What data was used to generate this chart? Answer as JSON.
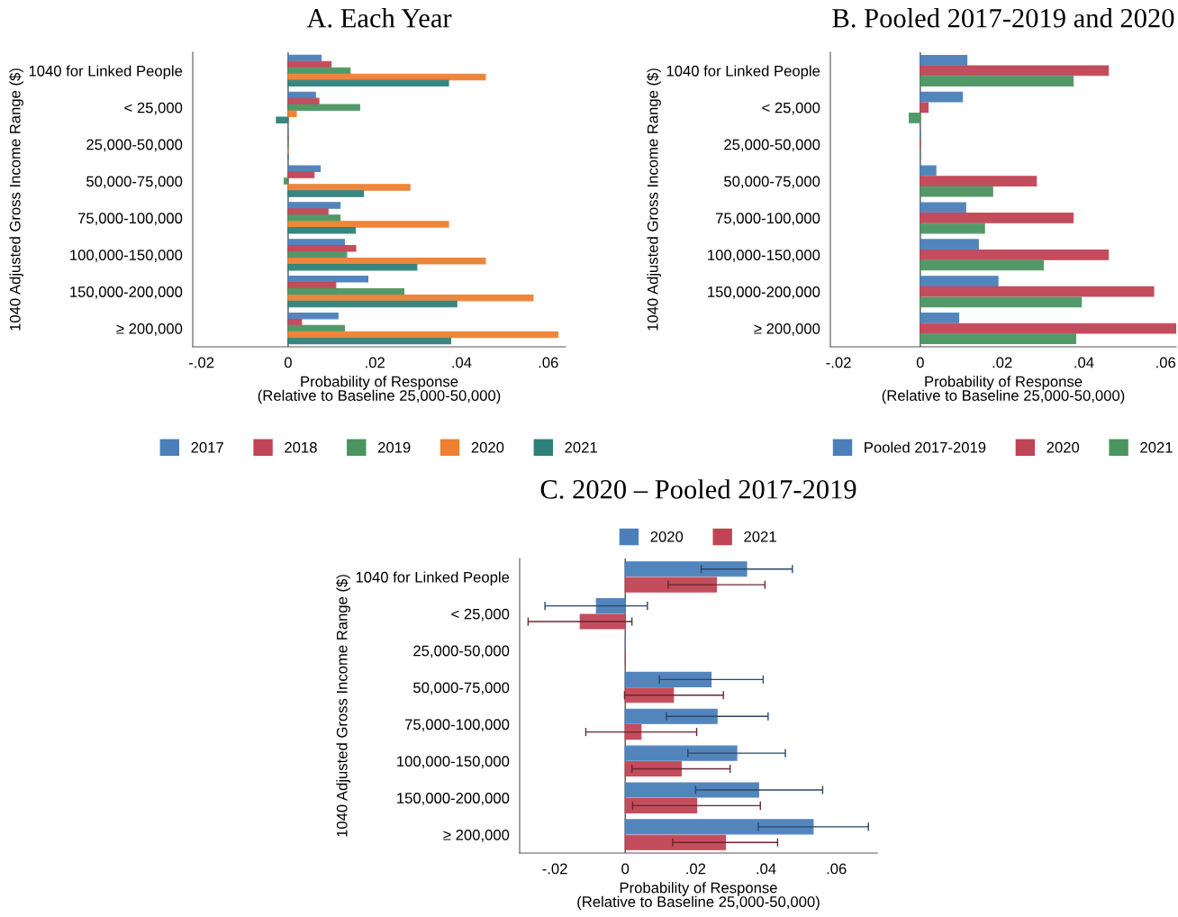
{
  "chart_data": [
    {
      "type": "bar",
      "orientation": "horizontal",
      "title": "A. Each Year",
      "xlabel": "Probability of Response\n(Relative to Baseline 25,000-50,000)",
      "ylabel": "1040 Adjusted Gross Income Range ($)",
      "categories": [
        "1040 for Linked People",
        "< 25,000",
        "25,000-50,000",
        "50,000-75,000",
        "75,000-100,000",
        "100,000-150,000",
        "150,000-200,000",
        "≥ 200,000"
      ],
      "series": [
        {
          "name": "2017",
          "color": "#4a7fba",
          "values": [
            0.0076,
            0.0063,
            0,
            0.0074,
            0.012,
            0.013,
            0.0184,
            0.0115
          ]
        },
        {
          "name": "2018",
          "color": "#c04455",
          "values": [
            0.0099,
            0.0071,
            0,
            0.006,
            0.0092,
            0.0156,
            0.011,
            0.0031
          ]
        },
        {
          "name": "2019",
          "color": "#4a9460",
          "values": [
            0.0143,
            0.0165,
            0,
            -0.0009,
            0.012,
            0.0135,
            0.0267,
            0.013
          ]
        },
        {
          "name": "2020",
          "color": "#ed8030",
          "values": [
            0.0455,
            0.0019,
            0,
            0.0281,
            0.037,
            0.0455,
            0.0565,
            0.0622
          ]
        },
        {
          "name": "2021",
          "color": "#2e8079",
          "values": [
            0.037,
            -0.0027,
            0,
            0.0174,
            0.0155,
            0.0297,
            0.0389,
            0.0375
          ]
        }
      ],
      "xlim": [
        -0.022,
        0.064
      ],
      "xticks": [
        {
          "value": -0.02,
          "label": "-.02"
        },
        0,
        {
          "value": 0.02,
          "label": ".02"
        },
        {
          "value": 0.04,
          "label": ".04"
        },
        {
          "value": 0.06,
          "label": ".06"
        }
      ],
      "ref_lines": [
        {
          "axis": "x",
          "value": 0,
          "color": "#555555"
        }
      ],
      "legend": "bottom",
      "grid": false
    },
    {
      "type": "bar",
      "orientation": "horizontal",
      "title": "B. Pooled 2017-2019 and 2020",
      "xlabel": "Probability of Response\n(Relative to Baseline 25,000-50,000)",
      "ylabel": "1040 Adjusted Gross Income Range ($)",
      "categories": [
        "1040 for Linked People",
        "< 25,000",
        "25,000-50,000",
        "50,000-75,000",
        "75,000-100,000",
        "100,000-150,000",
        "150,000-200,000",
        "≥ 200,000"
      ],
      "series": [
        {
          "name": "Pooled 2017-2019",
          "color": "#4a7fba",
          "values": [
            0.0114,
            0.0103,
            0,
            0.0038,
            0.0111,
            0.0142,
            0.019,
            0.0094
          ]
        },
        {
          "name": "2020",
          "color": "#c04455",
          "values": [
            0.046,
            0.0019,
            0,
            0.0284,
            0.0374,
            0.046,
            0.0571,
            0.0626
          ]
        },
        {
          "name": "2021",
          "color": "#4a9460",
          "values": [
            0.0374,
            -0.0027,
            0,
            0.0177,
            0.0157,
            0.0301,
            0.0394,
            0.038
          ]
        }
      ],
      "xlim": [
        -0.022,
        0.0626
      ],
      "xticks": [
        {
          "value": -0.02,
          "label": "-.02"
        },
        0,
        {
          "value": 0.02,
          "label": ".02"
        },
        {
          "value": 0.04,
          "label": ".04"
        },
        {
          "value": 0.06,
          "label": ".06"
        }
      ],
      "ref_lines": [
        {
          "axis": "x",
          "value": 0,
          "color": "#555555"
        }
      ],
      "legend": "bottom",
      "grid": false
    },
    {
      "type": "bar",
      "orientation": "horizontal",
      "title": "C. 2020 – Pooled 2017-2019",
      "xlabel": "Probability of Response\n(Relative to Baseline 25,000-50,000)",
      "ylabel": "1040 Adjusted Gross Income Range ($)",
      "categories": [
        "1040 for Linked People",
        "< 25,000",
        "25,000-50,000",
        "50,000-75,000",
        "75,000-100,000",
        "100,000-150,000",
        "150,000-200,000",
        "≥ 200,000"
      ],
      "series": [
        {
          "name": "2020",
          "color": "#4a7fba",
          "values": [
            0.0345,
            -0.0082,
            0,
            0.0244,
            0.0261,
            0.0317,
            0.0379,
            0.0534
          ],
          "errors": [
            [
              0.0216,
              0.0475
            ],
            [
              -0.0228,
              0.0063
            ],
            null,
            [
              0.0097,
              0.0392
            ],
            [
              0.0117,
              0.0406
            ],
            [
              0.0178,
              0.0455
            ],
            [
              0.02,
              0.0561
            ],
            [
              0.0378,
              0.0691
            ]
          ]
        },
        {
          "name": "2021",
          "color": "#c04455",
          "values": [
            0.0259,
            -0.0128,
            0,
            0.0137,
            0.0045,
            0.0159,
            0.0203,
            0.0285
          ],
          "errors": [
            [
              0.0122,
              0.0397
            ],
            [
              -0.0276,
              0.0019
            ],
            null,
            [
              -0.0002,
              0.0279
            ],
            [
              -0.0112,
              0.0203
            ],
            [
              0.0019,
              0.0298
            ],
            [
              0.0021,
              0.0384
            ],
            [
              0.0135,
              0.0433
            ]
          ]
        }
      ],
      "xlim": [
        -0.03,
        0.0716
      ],
      "xticks": [
        {
          "value": -0.02,
          "label": "-.02"
        },
        0,
        {
          "value": 0.02,
          "label": ".02"
        },
        {
          "value": 0.04,
          "label": ".04"
        },
        {
          "value": 0.06,
          "label": ".06"
        }
      ],
      "ref_lines": [
        {
          "axis": "x",
          "value": 0,
          "color": "#555555"
        }
      ],
      "legend": "top",
      "grid": false
    }
  ]
}
